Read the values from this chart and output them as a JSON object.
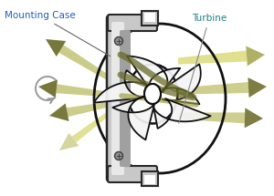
{
  "bg_color": "#ffffff",
  "mounting_case_label": "Mounting Case",
  "turbine_label": "Turbine",
  "case_fill": "#c8c8c8",
  "case_dark": "#282828",
  "case_mid": "#888888",
  "arrow_dark": "#6b6b2a",
  "arrow_mid": "#9a9a3a",
  "arrow_light": "#c8c880",
  "blade_fill": "#f0f0f0",
  "blade_edge": "#111111",
  "rot_color": "#aaaaaa",
  "label_blue": "#2060c0",
  "label_black": "#303030",
  "label_teal": "#208080",
  "figsize": [
    3.0,
    2.15
  ],
  "dpi": 100
}
